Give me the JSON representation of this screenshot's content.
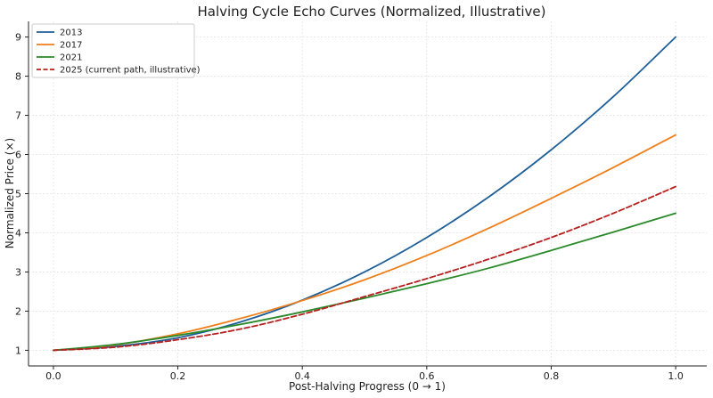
{
  "chart_data": {
    "type": "line",
    "title": "Halving Cycle Echo Curves (Normalized, Illustrative)",
    "xlabel": "Post-Halving Progress (0 → 1)",
    "ylabel": "Normalized Price (×)",
    "xlim": [
      -0.04,
      1.05
    ],
    "ylim": [
      0.6,
      9.4
    ],
    "xticks": [
      0.0,
      0.2,
      0.4,
      0.6,
      0.8,
      1.0
    ],
    "xtick_labels": [
      "0.0",
      "0.2",
      "0.4",
      "0.6",
      "0.8",
      "1.0"
    ],
    "yticks": [
      1,
      2,
      3,
      4,
      5,
      6,
      7,
      8,
      9
    ],
    "ytick_labels": [
      "1",
      "2",
      "3",
      "4",
      "5",
      "6",
      "7",
      "8",
      "9"
    ],
    "grid": true,
    "legend_position": "top-left",
    "x": [
      0.0,
      0.1,
      0.2,
      0.3,
      0.4,
      0.5,
      0.6,
      0.7,
      0.8,
      0.9,
      1.0
    ],
    "series": [
      {
        "name": "2013",
        "color": "#1f5f99",
        "dash": "solid",
        "values": [
          1.0,
          1.1,
          1.32,
          1.72,
          2.28,
          3.0,
          3.88,
          4.92,
          6.12,
          7.48,
          9.0
        ]
      },
      {
        "name": "2017",
        "color": "#ee7f1a",
        "dash": "solid",
        "values": [
          1.0,
          1.14,
          1.42,
          1.81,
          2.27,
          2.8,
          3.42,
          4.12,
          4.88,
          5.67,
          6.5
        ]
      },
      {
        "name": "2021",
        "color": "#2a8a2a",
        "dash": "solid",
        "values": [
          1.0,
          1.15,
          1.38,
          1.66,
          1.98,
          2.33,
          2.7,
          3.1,
          3.55,
          4.02,
          4.5
        ]
      },
      {
        "name": "2025 (current path, illustrative)",
        "color": "#b5201f",
        "dash": "dashed",
        "values": [
          1.0,
          1.08,
          1.27,
          1.54,
          1.92,
          2.37,
          2.83,
          3.33,
          3.88,
          4.5,
          5.18
        ]
      }
    ]
  }
}
